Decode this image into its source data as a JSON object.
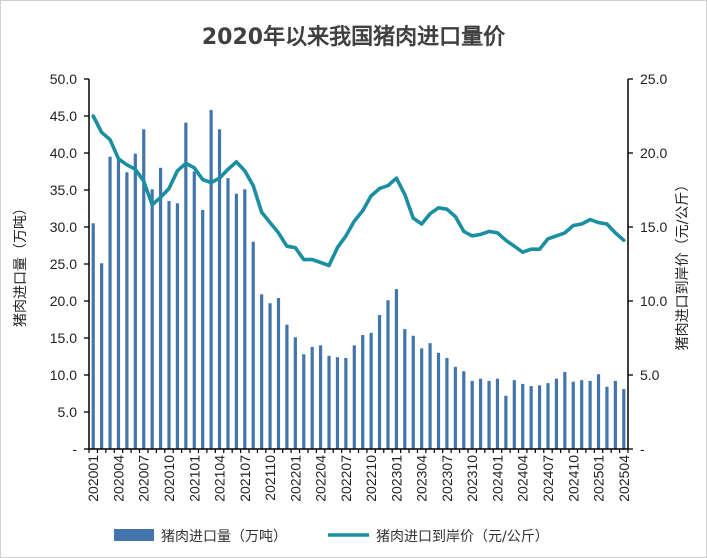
{
  "chart_data": {
    "type": "bar+line",
    "title": "2020年以来我国猪肉进口量价",
    "categories": [
      "202001",
      "202002",
      "202003",
      "202004",
      "202005",
      "202006",
      "202007",
      "202008",
      "202009",
      "202010",
      "202011",
      "202012",
      "202101",
      "202102",
      "202103",
      "202104",
      "202105",
      "202106",
      "202107",
      "202108",
      "202109",
      "202110",
      "202111",
      "202112",
      "202201",
      "202202",
      "202203",
      "202204",
      "202205",
      "202206",
      "202207",
      "202208",
      "202209",
      "202210",
      "202211",
      "202212",
      "202301",
      "202302",
      "202303",
      "202304",
      "202305",
      "202306",
      "202307",
      "202308",
      "202309",
      "202310",
      "202311",
      "202312",
      "202401",
      "202402",
      "202403",
      "202404",
      "202405",
      "202406",
      "202407",
      "202408",
      "202409",
      "202410",
      "202411",
      "202412",
      "202501",
      "202502",
      "202503",
      "202504"
    ],
    "xtick_labels": [
      "202001",
      "202004",
      "202007",
      "202010",
      "202101",
      "202104",
      "202107",
      "202110",
      "202201",
      "202204",
      "202207",
      "202210",
      "202301",
      "202304",
      "202307",
      "202310",
      "202401",
      "202404",
      "202407",
      "202410",
      "202501",
      "202504"
    ],
    "series": [
      {
        "name": "猪肉进口量（万吨）",
        "type": "bar",
        "axis": "left",
        "color": "#4374ab",
        "values": [
          30.5,
          25.1,
          39.5,
          39.0,
          37.4,
          39.9,
          43.2,
          35.1,
          38.0,
          33.5,
          33.2,
          44.1,
          37.5,
          32.3,
          45.8,
          43.2,
          36.6,
          34.5,
          35.1,
          28.0,
          20.9,
          19.7,
          20.4,
          16.8,
          15.1,
          12.8,
          13.8,
          14.0,
          12.6,
          12.4,
          12.3,
          14.0,
          15.4,
          15.7,
          18.1,
          20.1,
          21.6,
          16.2,
          15.3,
          13.6,
          14.3,
          13.0,
          12.3,
          11.1,
          10.5,
          9.2,
          9.5,
          9.2,
          9.5,
          7.2,
          9.3,
          8.8,
          8.5,
          8.6,
          8.9,
          9.5,
          10.4,
          9.1,
          9.3,
          9.2,
          10.1,
          8.4,
          9.2,
          8.1
        ]
      },
      {
        "name": "猪肉进口到岸价（元/公斤）",
        "type": "line",
        "axis": "right",
        "color": "#1b8fa2",
        "values": [
          22.5,
          21.4,
          20.9,
          19.6,
          19.2,
          18.9,
          18.1,
          16.5,
          17.0,
          17.6,
          18.8,
          19.3,
          19.0,
          18.2,
          18.0,
          18.3,
          18.9,
          19.4,
          18.8,
          17.8,
          16.0,
          15.3,
          14.6,
          13.7,
          13.6,
          12.8,
          12.8,
          12.6,
          12.4,
          13.6,
          14.4,
          15.4,
          16.1,
          17.1,
          17.6,
          17.8,
          18.3,
          17.2,
          15.6,
          15.2,
          15.9,
          16.3,
          16.2,
          15.7,
          14.7,
          14.4,
          14.5,
          14.7,
          14.6,
          14.1,
          13.7,
          13.3,
          13.5,
          13.5,
          14.2,
          14.4,
          14.6,
          15.1,
          15.2,
          15.5,
          15.3,
          15.2,
          14.6,
          14.1
        ]
      }
    ],
    "ylabel": "猪肉进口量（万吨）",
    "y2label": "猪肉进口到岸价（元/公斤）",
    "ylim": [
      0,
      50
    ],
    "y2lim": [
      0,
      25
    ],
    "ytick_labels": [
      "-",
      "5.0",
      "10.0",
      "15.0",
      "20.0",
      "25.0",
      "30.0",
      "35.0",
      "40.0",
      "45.0",
      "50.0"
    ],
    "y2tick_labels": [
      "-",
      "5.0",
      "10.0",
      "15.0",
      "20.0",
      "25.0"
    ],
    "grid": false,
    "legend": "bottom"
  }
}
